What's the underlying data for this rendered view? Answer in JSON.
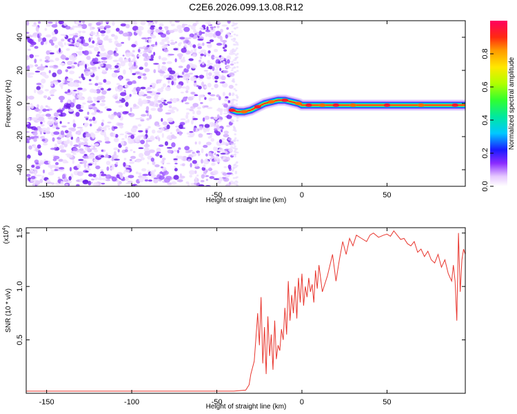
{
  "title": "C2E6.2026.099.13.08.R12",
  "chart_data": [
    {
      "type": "heatmap",
      "name": "spectrogram",
      "xlabel": "Height of straight line (km)",
      "ylabel": "Frequency (Hz)",
      "xlim": [
        -162,
        96
      ],
      "ylim": [
        -50,
        50
      ],
      "xticks": [
        -150,
        -100,
        -50,
        0,
        50
      ],
      "yticks": [
        -40,
        -20,
        0,
        20,
        40
      ],
      "noise_region_end_km": -41,
      "signal_ridge": {
        "x": [
          -41,
          -38,
          -34,
          -30,
          -26,
          -22,
          -18,
          -14,
          -10,
          -6,
          -2,
          0,
          4,
          8,
          12,
          16,
          20,
          24,
          30,
          40,
          50,
          60,
          70,
          80,
          90,
          96
        ],
        "freq": [
          -4,
          -5,
          -5,
          -4,
          -2,
          0,
          1,
          2,
          2,
          1,
          0,
          -1,
          -1,
          -1,
          -1,
          -1,
          -1,
          -1,
          -1,
          -1,
          -1,
          -1,
          -1,
          -1,
          -1,
          -1
        ]
      },
      "colorbar": {
        "label": "Normalized spectral amplitude",
        "range": [
          0,
          1
        ],
        "ticks": [
          0.0,
          0.2,
          0.4,
          0.6,
          0.8
        ]
      }
    },
    {
      "type": "line",
      "name": "snr",
      "xlabel": "Height of straight line (km)",
      "ylabel": "SNR (10 * v/v)",
      "scale_label": "(x10",
      "scale_exp": "4",
      "scale_close": ")",
      "xlim": [
        -162,
        96
      ],
      "ylim": [
        0,
        1.55
      ],
      "xticks": [
        -150,
        -100,
        -50,
        0,
        50
      ],
      "yticks": [
        0.5,
        1.0,
        1.5
      ],
      "color": "#e8342c",
      "series": [
        {
          "name": "SNR",
          "x": [
            -162,
            -150,
            -120,
            -90,
            -60,
            -40,
            -33,
            -31,
            -30,
            -28,
            -27,
            -26,
            -25,
            -24,
            -23,
            -22,
            -21,
            -20,
            -19,
            -18,
            -17,
            -16,
            -15,
            -14,
            -13,
            -12,
            -11,
            -10,
            -9,
            -8,
            -7,
            -6,
            -5,
            -4,
            -3,
            -2,
            -1,
            0,
            1,
            2,
            3,
            4,
            5,
            6,
            7,
            8,
            9,
            10,
            12,
            15,
            18,
            20,
            22,
            24,
            26,
            28,
            30,
            32,
            35,
            38,
            40,
            42,
            45,
            48,
            50,
            52,
            54,
            56,
            58,
            60,
            62,
            64,
            66,
            68,
            70,
            72,
            74,
            76,
            78,
            80,
            82,
            84,
            86,
            88,
            89,
            90,
            91,
            92,
            93,
            94,
            95,
            96
          ],
          "y": [
            0.02,
            0.02,
            0.02,
            0.02,
            0.02,
            0.02,
            0.03,
            0.08,
            0.18,
            0.3,
            0.52,
            0.75,
            0.45,
            0.9,
            0.28,
            0.62,
            0.18,
            0.72,
            0.35,
            0.55,
            0.22,
            0.68,
            0.32,
            0.45,
            0.4,
            0.6,
            0.5,
            0.8,
            0.55,
            1.05,
            0.68,
            0.92,
            0.75,
            1.0,
            0.7,
            1.08,
            0.85,
            1.12,
            0.82,
            1.0,
            0.9,
            1.08,
            0.95,
            1.02,
            0.85,
            1.15,
            0.98,
            1.2,
            0.95,
            1.1,
            1.3,
            1.05,
            1.25,
            1.42,
            1.3,
            1.45,
            1.38,
            1.48,
            1.45,
            1.42,
            1.48,
            1.5,
            1.46,
            1.48,
            1.49,
            1.47,
            1.52,
            1.48,
            1.44,
            1.45,
            1.4,
            1.38,
            1.42,
            1.32,
            1.35,
            1.28,
            1.33,
            1.25,
            1.22,
            1.3,
            1.18,
            1.25,
            1.12,
            1.05,
            1.2,
            1.05,
            0.68,
            1.5,
            0.95,
            1.25,
            1.35,
            1.3
          ]
        }
      ]
    }
  ]
}
